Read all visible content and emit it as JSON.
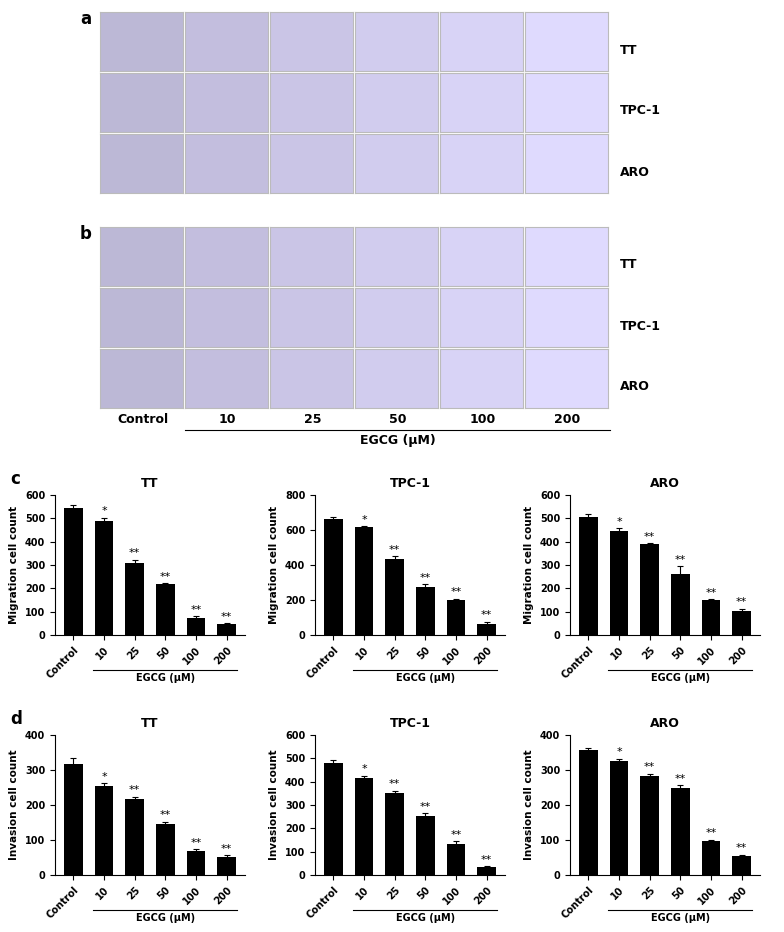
{
  "panel_labels": [
    "a",
    "b",
    "c",
    "d"
  ],
  "image_panels": {
    "rows": [
      "TT",
      "TPC-1",
      "ARO"
    ],
    "columns": [
      "Control",
      "10",
      "25",
      "50",
      "100",
      "200"
    ],
    "xlabel": "EGCG (μM)"
  },
  "chart_data": [
    {
      "type": "bar",
      "title": "TT",
      "ylabel": "Migration cell count",
      "xlabel": "EGCG (μM)",
      "categories": [
        "Control",
        "10",
        "25",
        "50",
        "100",
        "200"
      ],
      "values": [
        545,
        490,
        310,
        218,
        75,
        48
      ],
      "errors": [
        10,
        12,
        12,
        5,
        5,
        3
      ],
      "annotations": [
        null,
        "*",
        "**",
        "**",
        "**",
        "**"
      ],
      "color": "#000000",
      "ylim": [
        0,
        600
      ],
      "yticks": [
        0,
        100,
        200,
        300,
        400,
        500,
        600
      ]
    },
    {
      "type": "bar",
      "title": "TPC-1",
      "ylabel": "Migration cell count",
      "xlabel": "EGCG (μM)",
      "categories": [
        "Control",
        "10",
        "25",
        "50",
        "100",
        "200"
      ],
      "values": [
        665,
        615,
        437,
        275,
        200,
        65
      ],
      "errors": [
        12,
        8,
        12,
        15,
        8,
        12
      ],
      "annotations": [
        null,
        "*",
        "**",
        "**",
        "**",
        "**"
      ],
      "color": "#000000",
      "ylim": [
        0,
        800
      ],
      "yticks": [
        0,
        200,
        400,
        600,
        800
      ]
    },
    {
      "type": "bar",
      "title": "ARO",
      "ylabel": "Migration cell count",
      "xlabel": "EGCG (μM)",
      "categories": [
        "Control",
        "10",
        "25",
        "50",
        "100",
        "200"
      ],
      "values": [
        505,
        445,
        388,
        260,
        148,
        105
      ],
      "errors": [
        15,
        12,
        5,
        35,
        5,
        8
      ],
      "annotations": [
        null,
        "*",
        "**",
        "**",
        "**",
        "**"
      ],
      "color": "#000000",
      "ylim": [
        0,
        600
      ],
      "yticks": [
        0,
        100,
        200,
        300,
        400,
        500,
        600
      ]
    },
    {
      "type": "bar",
      "title": "TT",
      "ylabel": "Invasion cell count",
      "xlabel": "EGCG (μM)",
      "categories": [
        "Control",
        "10",
        "25",
        "50",
        "100",
        "200"
      ],
      "values": [
        318,
        253,
        217,
        145,
        68,
        52
      ],
      "errors": [
        15,
        10,
        7,
        7,
        5,
        4
      ],
      "annotations": [
        null,
        "*",
        "**",
        "**",
        "**",
        "**"
      ],
      "color": "#000000",
      "ylim": [
        0,
        400
      ],
      "yticks": [
        0,
        100,
        200,
        300,
        400
      ]
    },
    {
      "type": "bar",
      "title": "TPC-1",
      "ylabel": "Invasion cell count",
      "xlabel": "EGCG (μM)",
      "categories": [
        "Control",
        "10",
        "25",
        "50",
        "100",
        "200"
      ],
      "values": [
        482,
        415,
        352,
        255,
        135,
        33
      ],
      "errors": [
        10,
        10,
        10,
        10,
        10,
        6
      ],
      "annotations": [
        null,
        "*",
        "**",
        "**",
        "**",
        "**"
      ],
      "color": "#000000",
      "ylim": [
        0,
        600
      ],
      "yticks": [
        0,
        100,
        200,
        300,
        400,
        500,
        600
      ]
    },
    {
      "type": "bar",
      "title": "ARO",
      "ylabel": "Invasion cell count",
      "xlabel": "EGCG (μM)",
      "categories": [
        "Control",
        "10",
        "25",
        "50",
        "100",
        "200"
      ],
      "values": [
        358,
        327,
        283,
        250,
        97,
        55
      ],
      "errors": [
        5,
        5,
        6,
        6,
        4,
        3
      ],
      "annotations": [
        null,
        "*",
        "**",
        "**",
        "**",
        "**"
      ],
      "color": "#000000",
      "ylim": [
        0,
        400
      ],
      "yticks": [
        0,
        100,
        200,
        300,
        400
      ]
    }
  ]
}
